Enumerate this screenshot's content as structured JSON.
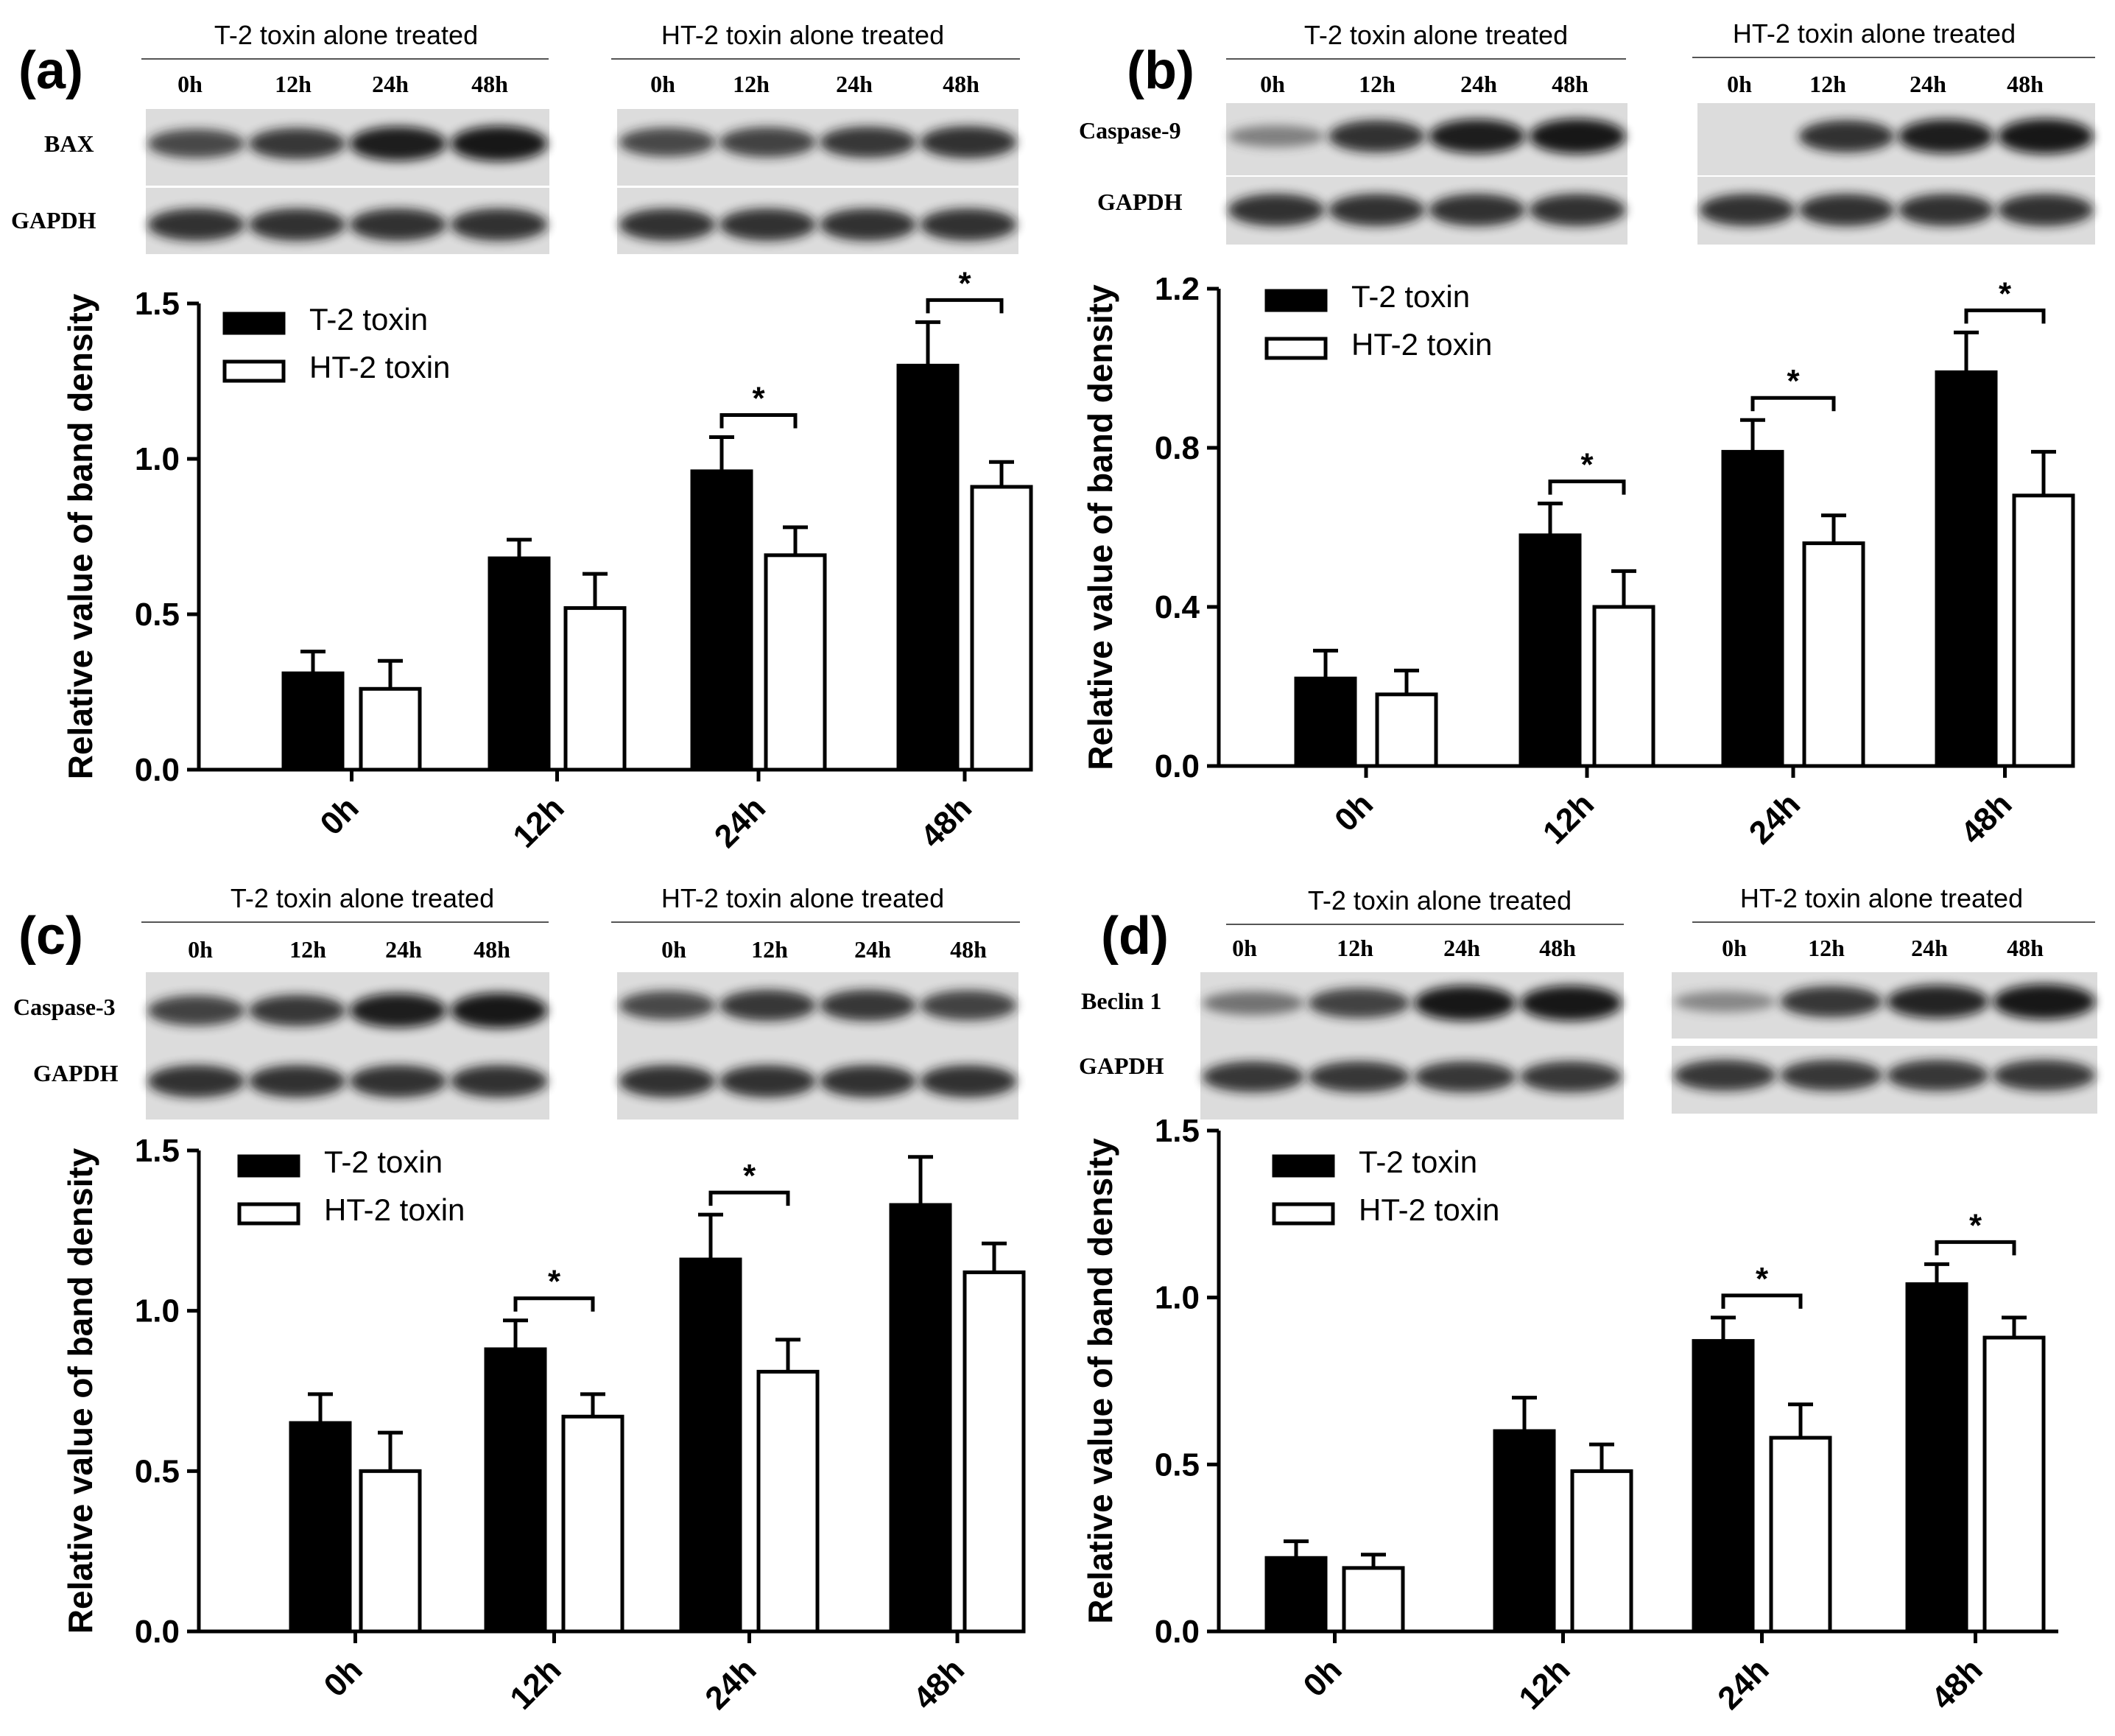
{
  "legend": [
    "T-2 toxin",
    "HT-2 toxin"
  ],
  "blot_headers": [
    "T-2 toxin alone treated",
    "HT-2 toxin alone treated"
  ],
  "blot_lane_labels": [
    "0h",
    "12h",
    "24h",
    "48h"
  ],
  "loading_control": "GAPDH",
  "significance_mark": "*",
  "chart_data": [
    {
      "panel": "(a)",
      "protein": "BAX",
      "type": "bar",
      "ylabel": "Relative value of band density",
      "categories": [
        "0h",
        "12h",
        "24h",
        "48h"
      ],
      "ylim": [
        0,
        1.5
      ],
      "yticks": [
        "0.0",
        "0.5",
        "1.0",
        "1.5"
      ],
      "series": [
        {
          "name": "T-2 toxin",
          "values": [
            0.31,
            0.68,
            0.96,
            1.3
          ],
          "errors": [
            0.07,
            0.06,
            0.11,
            0.14
          ]
        },
        {
          "name": "HT-2 toxin",
          "values": [
            0.26,
            0.52,
            0.69,
            0.91
          ],
          "errors": [
            0.09,
            0.11,
            0.09,
            0.08
          ]
        }
      ],
      "significant": [
        2,
        3
      ]
    },
    {
      "panel": "(b)",
      "protein": "Caspase-9",
      "type": "bar",
      "ylabel": "Relative value of band density",
      "categories": [
        "0h",
        "12h",
        "24h",
        "48h"
      ],
      "ylim": [
        0,
        1.2
      ],
      "yticks": [
        "0.0",
        "0.4",
        "0.8",
        "1.2"
      ],
      "series": [
        {
          "name": "T-2 toxin",
          "values": [
            0.22,
            0.58,
            0.79,
            0.99
          ],
          "errors": [
            0.07,
            0.08,
            0.08,
            0.1
          ]
        },
        {
          "name": "HT-2 toxin",
          "values": [
            0.18,
            0.4,
            0.56,
            0.68
          ],
          "errors": [
            0.06,
            0.09,
            0.07,
            0.11
          ]
        }
      ],
      "significant": [
        1,
        2,
        3
      ]
    },
    {
      "panel": "(c)",
      "protein": "Caspase-3",
      "type": "bar",
      "ylabel": "Relative value of band density",
      "categories": [
        "0h",
        "12h",
        "24h",
        "48h"
      ],
      "ylim": [
        0,
        1.5
      ],
      "yticks": [
        "0.0",
        "0.5",
        "1.0",
        "1.5"
      ],
      "series": [
        {
          "name": "T-2 toxin",
          "values": [
            0.65,
            0.88,
            1.16,
            1.33
          ],
          "errors": [
            0.09,
            0.09,
            0.14,
            0.15
          ]
        },
        {
          "name": "HT-2 toxin",
          "values": [
            0.5,
            0.67,
            0.81,
            1.12
          ],
          "errors": [
            0.12,
            0.07,
            0.1,
            0.09
          ]
        }
      ],
      "significant": [
        1,
        2
      ]
    },
    {
      "panel": "(d)",
      "protein": "Beclin 1",
      "type": "bar",
      "ylabel": "Relative value of band density",
      "categories": [
        "0h",
        "12h",
        "24h",
        "48h"
      ],
      "ylim": [
        0,
        1.5
      ],
      "yticks": [
        "0.0",
        "0.5",
        "1.0",
        "1.5"
      ],
      "series": [
        {
          "name": "T-2 toxin",
          "values": [
            0.22,
            0.6,
            0.87,
            1.04
          ],
          "errors": [
            0.05,
            0.1,
            0.07,
            0.06
          ]
        },
        {
          "name": "HT-2 toxin",
          "values": [
            0.19,
            0.48,
            0.58,
            0.88
          ],
          "errors": [
            0.04,
            0.08,
            0.1,
            0.06
          ]
        }
      ],
      "significant": [
        2,
        3
      ]
    }
  ]
}
